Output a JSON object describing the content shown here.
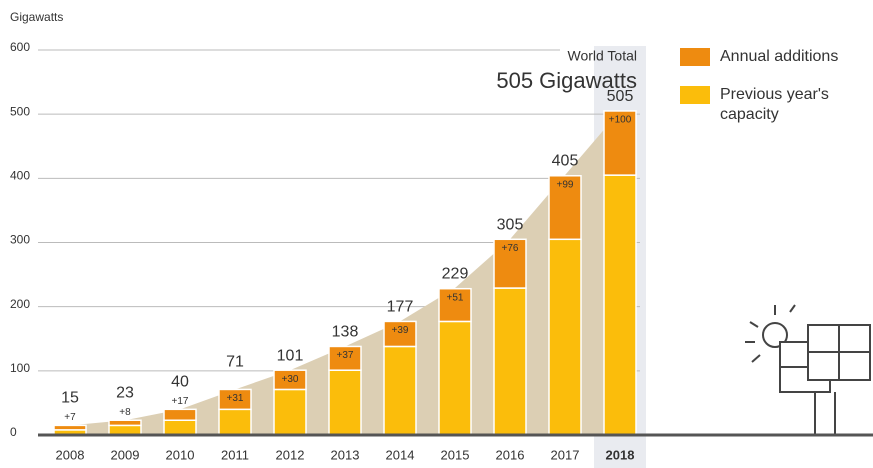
{
  "chart_data": {
    "type": "bar",
    "stacked": true,
    "y_label": "Gigawatts",
    "categories": [
      "2008",
      "2009",
      "2010",
      "2011",
      "2012",
      "2013",
      "2014",
      "2015",
      "2016",
      "2017",
      "2018"
    ],
    "series": [
      {
        "name": "Previous year's capacity",
        "color": "#fbbd0b",
        "values": [
          8,
          15,
          23,
          40,
          71,
          101,
          138,
          177,
          229,
          305,
          405
        ]
      },
      {
        "name": "Annual additions",
        "color": "#ee8b10",
        "values": [
          7,
          8,
          17,
          31,
          30,
          37,
          39,
          51,
          76,
          99,
          100
        ],
        "value_labels": [
          "+7",
          "+8",
          "+17",
          "+31",
          "+30",
          "+37",
          "+39",
          "+51",
          "+76",
          "+99",
          "+100"
        ]
      }
    ],
    "totals": [
      15,
      23,
      40,
      71,
      101,
      138,
      177,
      229,
      305,
      405,
      505
    ],
    "area_color": "#dccfb4",
    "annotations": [
      "World Total",
      "505 Gigawatts"
    ],
    "ylim": [
      0,
      600
    ],
    "yticks": [
      0,
      100,
      200,
      300,
      400,
      500,
      600
    ],
    "grid": true
  }
}
